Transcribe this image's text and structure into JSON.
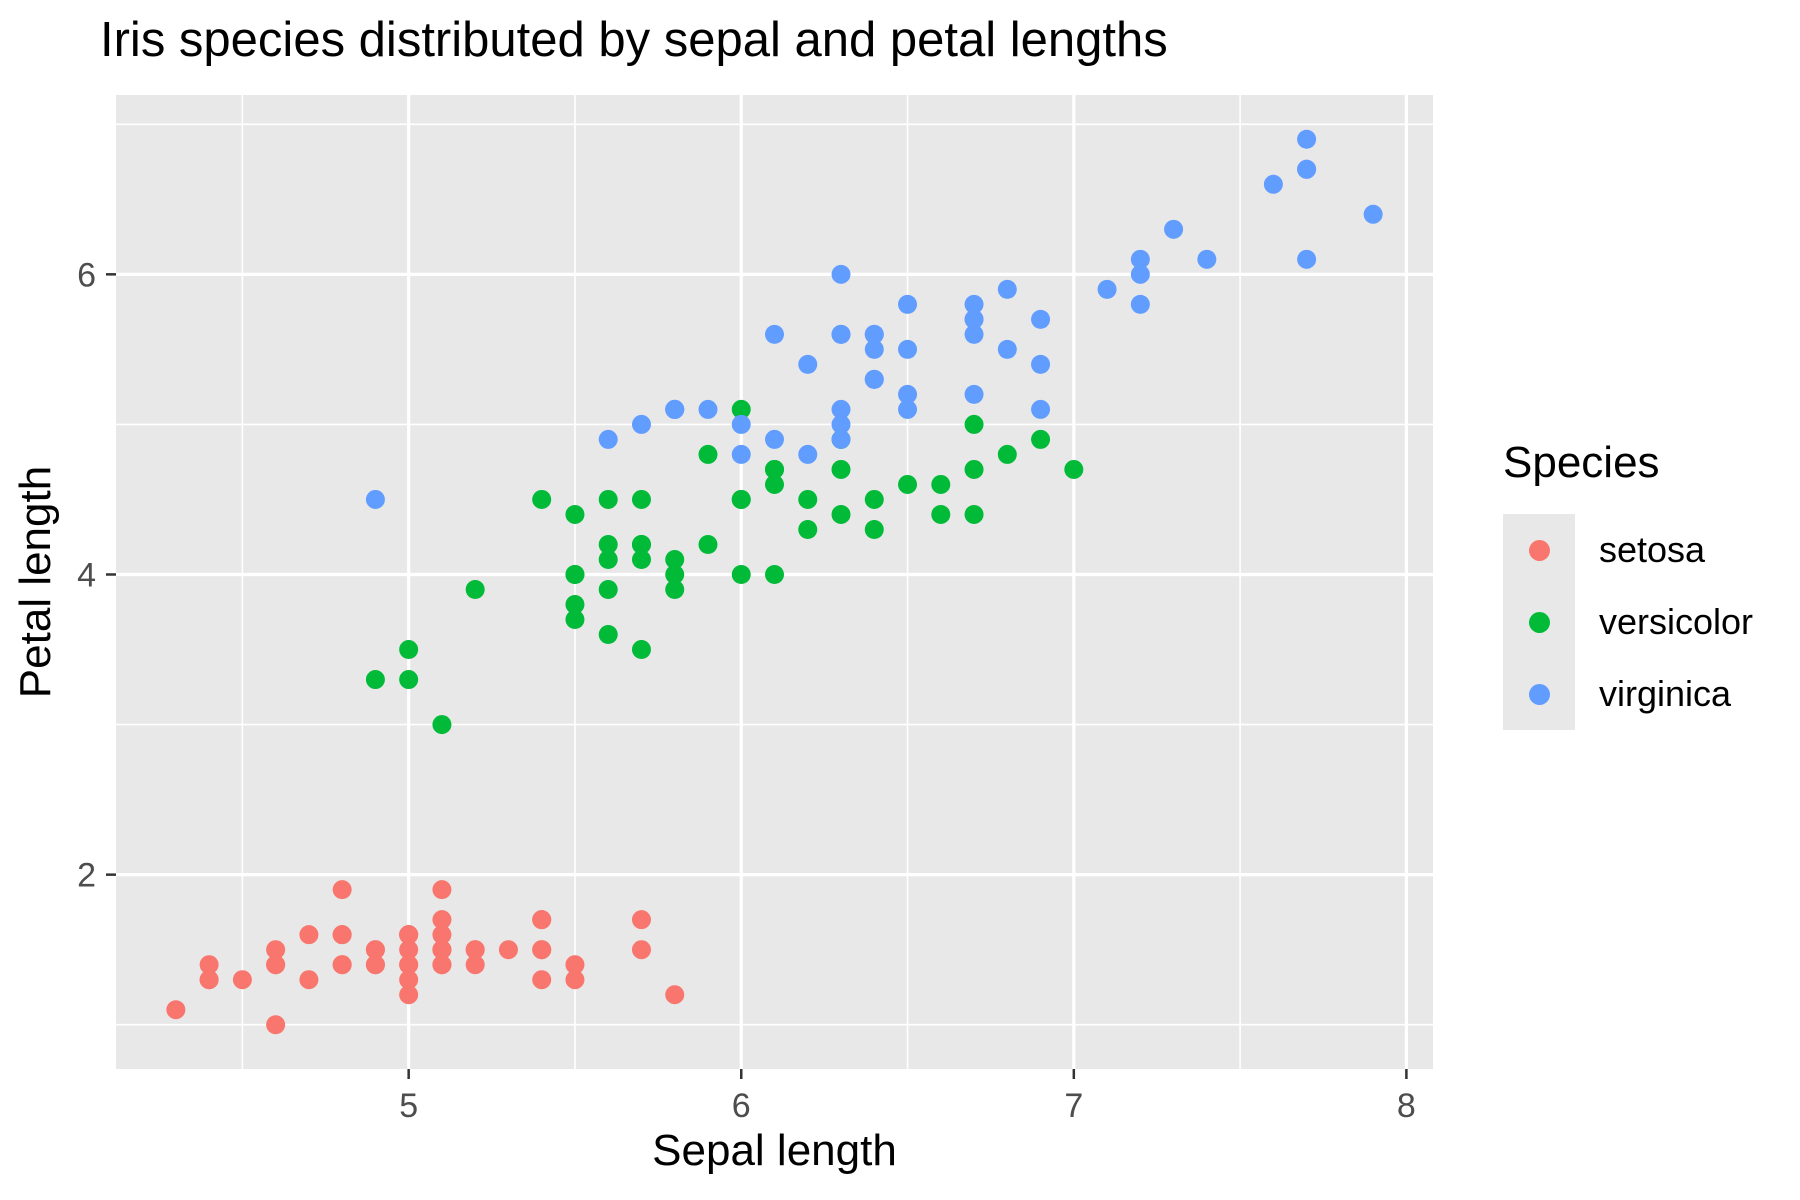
{
  "chart": {
    "title": "Iris species distributed by sepal and petal lengths",
    "xlabel": "Sepal length",
    "ylabel": "Petal length"
  },
  "legend": {
    "title": "Species",
    "items": [
      {
        "label": "setosa",
        "color": "#F8766D"
      },
      {
        "label": "versicolor",
        "color": "#00BA38"
      },
      {
        "label": "virginica",
        "color": "#619CFF"
      }
    ]
  },
  "colors": {
    "panel_background": "#E8E8E8",
    "gridline": "#FFFFFF",
    "tick_mark": "#333333",
    "tick_label": "#4D4D4D",
    "setosa": "#F8766D",
    "versicolor": "#00BA38",
    "virginica": "#619CFF"
  },
  "chart_data": {
    "type": "scatter",
    "title": "Iris species distributed by sepal and petal lengths",
    "xlabel": "Sepal length",
    "ylabel": "Petal length",
    "xlim": [
      4.12,
      8.08
    ],
    "ylim": [
      0.705,
      7.195
    ],
    "x_ticks": [
      5,
      6,
      7,
      8
    ],
    "y_ticks": [
      2,
      4,
      6
    ],
    "x_minor_ticks": [
      4.5,
      5.5,
      6.5,
      7.5
    ],
    "y_minor_ticks": [
      1,
      3,
      5,
      7
    ],
    "grid": true,
    "legend_position": "right",
    "point_radius_px": 9.5,
    "series": [
      {
        "name": "setosa",
        "color": "#F8766D",
        "points": [
          [
            5.1,
            1.4
          ],
          [
            4.9,
            1.4
          ],
          [
            4.7,
            1.3
          ],
          [
            4.6,
            1.5
          ],
          [
            5.0,
            1.4
          ],
          [
            5.4,
            1.7
          ],
          [
            4.6,
            1.4
          ],
          [
            5.0,
            1.5
          ],
          [
            4.4,
            1.4
          ],
          [
            4.9,
            1.5
          ],
          [
            5.4,
            1.5
          ],
          [
            4.8,
            1.6
          ],
          [
            4.8,
            1.4
          ],
          [
            4.3,
            1.1
          ],
          [
            5.8,
            1.2
          ],
          [
            5.7,
            1.5
          ],
          [
            5.4,
            1.3
          ],
          [
            5.1,
            1.4
          ],
          [
            5.7,
            1.7
          ],
          [
            5.1,
            1.5
          ],
          [
            5.4,
            1.7
          ],
          [
            5.1,
            1.5
          ],
          [
            4.6,
            1.0
          ],
          [
            5.1,
            1.7
          ],
          [
            4.8,
            1.9
          ],
          [
            5.0,
            1.6
          ],
          [
            5.0,
            1.6
          ],
          [
            5.2,
            1.5
          ],
          [
            5.2,
            1.4
          ],
          [
            4.7,
            1.6
          ],
          [
            4.8,
            1.6
          ],
          [
            5.4,
            1.5
          ],
          [
            5.2,
            1.5
          ],
          [
            5.5,
            1.4
          ],
          [
            4.9,
            1.5
          ],
          [
            5.0,
            1.2
          ],
          [
            5.5,
            1.3
          ],
          [
            4.9,
            1.4
          ],
          [
            4.4,
            1.3
          ],
          [
            5.1,
            1.5
          ],
          [
            5.0,
            1.3
          ],
          [
            4.5,
            1.3
          ],
          [
            4.4,
            1.3
          ],
          [
            5.0,
            1.6
          ],
          [
            5.1,
            1.9
          ],
          [
            4.8,
            1.4
          ],
          [
            5.1,
            1.6
          ],
          [
            4.6,
            1.4
          ],
          [
            5.3,
            1.5
          ],
          [
            5.0,
            1.4
          ]
        ]
      },
      {
        "name": "versicolor",
        "color": "#00BA38",
        "points": [
          [
            7.0,
            4.7
          ],
          [
            6.4,
            4.5
          ],
          [
            6.9,
            4.9
          ],
          [
            5.5,
            4.0
          ],
          [
            6.5,
            4.6
          ],
          [
            5.7,
            4.5
          ],
          [
            6.3,
            4.7
          ],
          [
            4.9,
            3.3
          ],
          [
            6.6,
            4.6
          ],
          [
            5.2,
            3.9
          ],
          [
            5.0,
            3.5
          ],
          [
            5.9,
            4.2
          ],
          [
            6.0,
            4.0
          ],
          [
            6.1,
            4.7
          ],
          [
            5.6,
            3.6
          ],
          [
            6.7,
            4.4
          ],
          [
            5.6,
            4.5
          ],
          [
            5.8,
            4.1
          ],
          [
            6.2,
            4.5
          ],
          [
            5.6,
            3.9
          ],
          [
            5.9,
            4.8
          ],
          [
            6.1,
            4.0
          ],
          [
            6.3,
            4.9
          ],
          [
            6.1,
            4.7
          ],
          [
            6.4,
            4.3
          ],
          [
            6.6,
            4.4
          ],
          [
            6.8,
            4.8
          ],
          [
            6.7,
            5.0
          ],
          [
            6.0,
            4.5
          ],
          [
            5.7,
            3.5
          ],
          [
            5.5,
            3.8
          ],
          [
            5.5,
            3.7
          ],
          [
            5.8,
            3.9
          ],
          [
            6.0,
            5.1
          ],
          [
            5.4,
            4.5
          ],
          [
            6.0,
            4.5
          ],
          [
            6.7,
            4.7
          ],
          [
            6.3,
            4.4
          ],
          [
            5.6,
            4.1
          ],
          [
            5.5,
            4.0
          ],
          [
            5.5,
            4.4
          ],
          [
            6.1,
            4.6
          ],
          [
            5.8,
            4.0
          ],
          [
            5.0,
            3.3
          ],
          [
            5.6,
            4.2
          ],
          [
            5.7,
            4.2
          ],
          [
            5.7,
            4.2
          ],
          [
            6.2,
            4.3
          ],
          [
            5.1,
            3.0
          ],
          [
            5.7,
            4.1
          ]
        ]
      },
      {
        "name": "virginica",
        "color": "#619CFF",
        "points": [
          [
            6.3,
            6.0
          ],
          [
            5.8,
            5.1
          ],
          [
            7.1,
            5.9
          ],
          [
            6.3,
            5.6
          ],
          [
            6.5,
            5.8
          ],
          [
            7.6,
            6.6
          ],
          [
            4.9,
            4.5
          ],
          [
            7.3,
            6.3
          ],
          [
            6.7,
            5.8
          ],
          [
            7.2,
            6.1
          ],
          [
            6.5,
            5.1
          ],
          [
            6.4,
            5.3
          ],
          [
            6.8,
            5.5
          ],
          [
            5.7,
            5.0
          ],
          [
            5.8,
            5.1
          ],
          [
            6.4,
            5.3
          ],
          [
            6.5,
            5.5
          ],
          [
            7.7,
            6.7
          ],
          [
            7.7,
            6.9
          ],
          [
            6.0,
            5.0
          ],
          [
            6.9,
            5.7
          ],
          [
            5.6,
            4.9
          ],
          [
            7.7,
            6.7
          ],
          [
            6.3,
            4.9
          ],
          [
            6.7,
            5.7
          ],
          [
            7.2,
            6.0
          ],
          [
            6.2,
            4.8
          ],
          [
            6.1,
            4.9
          ],
          [
            6.4,
            5.6
          ],
          [
            7.2,
            5.8
          ],
          [
            7.4,
            6.1
          ],
          [
            7.9,
            6.4
          ],
          [
            6.4,
            5.6
          ],
          [
            6.3,
            5.1
          ],
          [
            6.1,
            5.6
          ],
          [
            7.7,
            6.1
          ],
          [
            6.3,
            5.6
          ],
          [
            6.4,
            5.5
          ],
          [
            6.0,
            4.8
          ],
          [
            6.9,
            5.4
          ],
          [
            6.7,
            5.6
          ],
          [
            6.9,
            5.1
          ],
          [
            5.8,
            5.1
          ],
          [
            6.8,
            5.9
          ],
          [
            6.7,
            5.7
          ],
          [
            6.7,
            5.2
          ],
          [
            6.3,
            5.0
          ],
          [
            6.5,
            5.2
          ],
          [
            6.2,
            5.4
          ],
          [
            5.9,
            5.1
          ]
        ]
      }
    ]
  }
}
